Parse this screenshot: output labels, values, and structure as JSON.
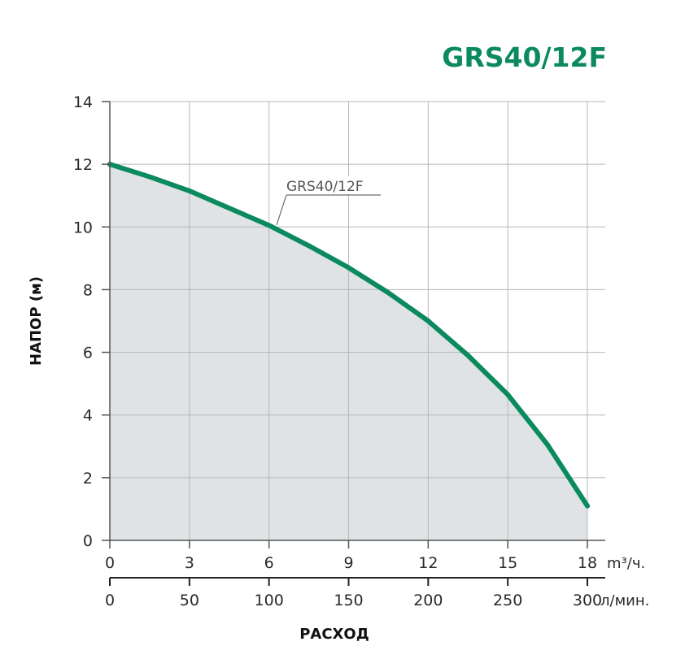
{
  "colors": {
    "accent": "#0b8a5e",
    "fill": "#dfe3e5",
    "grid": "#b7b7b7",
    "axis": "#555555"
  },
  "chart_data": {
    "type": "area",
    "title": "GRS40/12F",
    "ylabel": "НАПОР (м)",
    "xlabel": "РАСХОД",
    "ylim": [
      0,
      14
    ],
    "xlim": [
      0,
      18
    ],
    "grid": true,
    "y_ticks": [
      "0",
      "2",
      "4",
      "6",
      "8",
      "10",
      "12",
      "14"
    ],
    "x_ticks_primary": [
      "0",
      "3",
      "6",
      "9",
      "12",
      "15",
      "18"
    ],
    "x_unit_primary": "m³/ч.",
    "x_ticks_secondary": [
      "0",
      "50",
      "100",
      "150",
      "200",
      "250",
      "300"
    ],
    "x_unit_secondary": "л/мин.",
    "series": [
      {
        "name": "GRS40/12F",
        "x": [
          0,
          1.5,
          3,
          4.5,
          6,
          7.5,
          9,
          10.5,
          12,
          13.5,
          15,
          16.5,
          18
        ],
        "y": [
          12.0,
          11.6,
          11.15,
          10.6,
          10.05,
          9.4,
          8.7,
          7.9,
          7.0,
          5.9,
          4.65,
          3.05,
          1.1
        ]
      }
    ]
  }
}
